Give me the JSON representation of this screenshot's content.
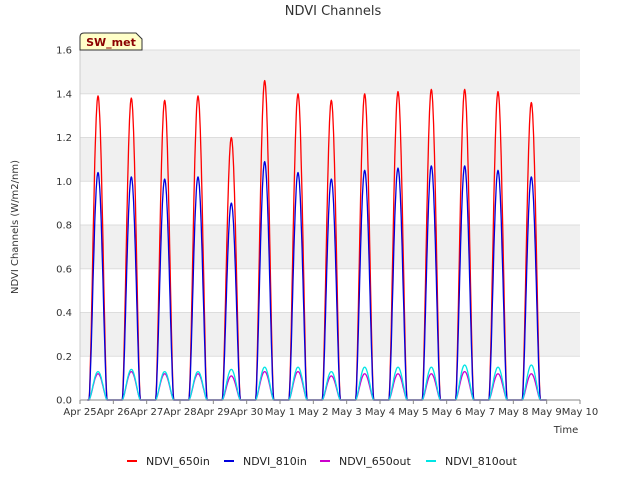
{
  "chart_data": {
    "type": "line",
    "title": "NDVI Channels",
    "xlabel": "Time",
    "ylabel": "NDVI Channels (W/m2/nm)",
    "ylim": [
      0.0,
      1.6
    ],
    "yticks": [
      0.0,
      0.2,
      0.4,
      0.6,
      0.8,
      1.0,
      1.2,
      1.4,
      1.6
    ],
    "ytick_labels": [
      "0.0",
      "0.2",
      "0.4",
      "0.6",
      "0.8",
      "1.0",
      "1.2",
      "1.4",
      "1.6"
    ],
    "xlim_days": [
      0,
      15
    ],
    "xtick_labels": [
      "Apr 25",
      "Apr 26",
      "Apr 27",
      "Apr 28",
      "Apr 29",
      "Apr 30",
      "May 1",
      "May 2",
      "May 3",
      "May 4",
      "May 5",
      "May 6",
      "May 7",
      "May 8",
      "May 9",
      "May 10"
    ],
    "badge": "SW_met",
    "grid": "horizontal bands",
    "legend_position": "bottom-center",
    "day_peaks": [
      "Apr 25",
      "Apr 26",
      "Apr 27",
      "Apr 28",
      "Apr 29",
      "Apr 30",
      "May 1",
      "May 2",
      "May 3",
      "May 4",
      "May 5",
      "May 6",
      "May 7",
      "May 8"
    ],
    "series": [
      {
        "name": "NDVI_650in",
        "color": "#ff0000",
        "peaks": [
          1.39,
          1.38,
          1.37,
          1.39,
          1.2,
          1.46,
          1.4,
          1.37,
          1.4,
          1.41,
          1.42,
          1.42,
          1.41,
          1.36
        ]
      },
      {
        "name": "NDVI_810in",
        "color": "#0000dd",
        "peaks": [
          1.04,
          1.02,
          1.01,
          1.02,
          0.9,
          1.09,
          1.04,
          1.01,
          1.05,
          1.06,
          1.07,
          1.07,
          1.05,
          1.02
        ]
      },
      {
        "name": "NDVI_650out",
        "color": "#cc00cc",
        "peaks": [
          0.12,
          0.13,
          0.12,
          0.12,
          0.11,
          0.13,
          0.13,
          0.11,
          0.12,
          0.12,
          0.12,
          0.13,
          0.12,
          0.12
        ]
      },
      {
        "name": "NDVI_810out",
        "color": "#00e5e5",
        "peaks": [
          0.13,
          0.14,
          0.13,
          0.13,
          0.14,
          0.15,
          0.15,
          0.13,
          0.15,
          0.15,
          0.15,
          0.16,
          0.15,
          0.16
        ]
      }
    ]
  }
}
